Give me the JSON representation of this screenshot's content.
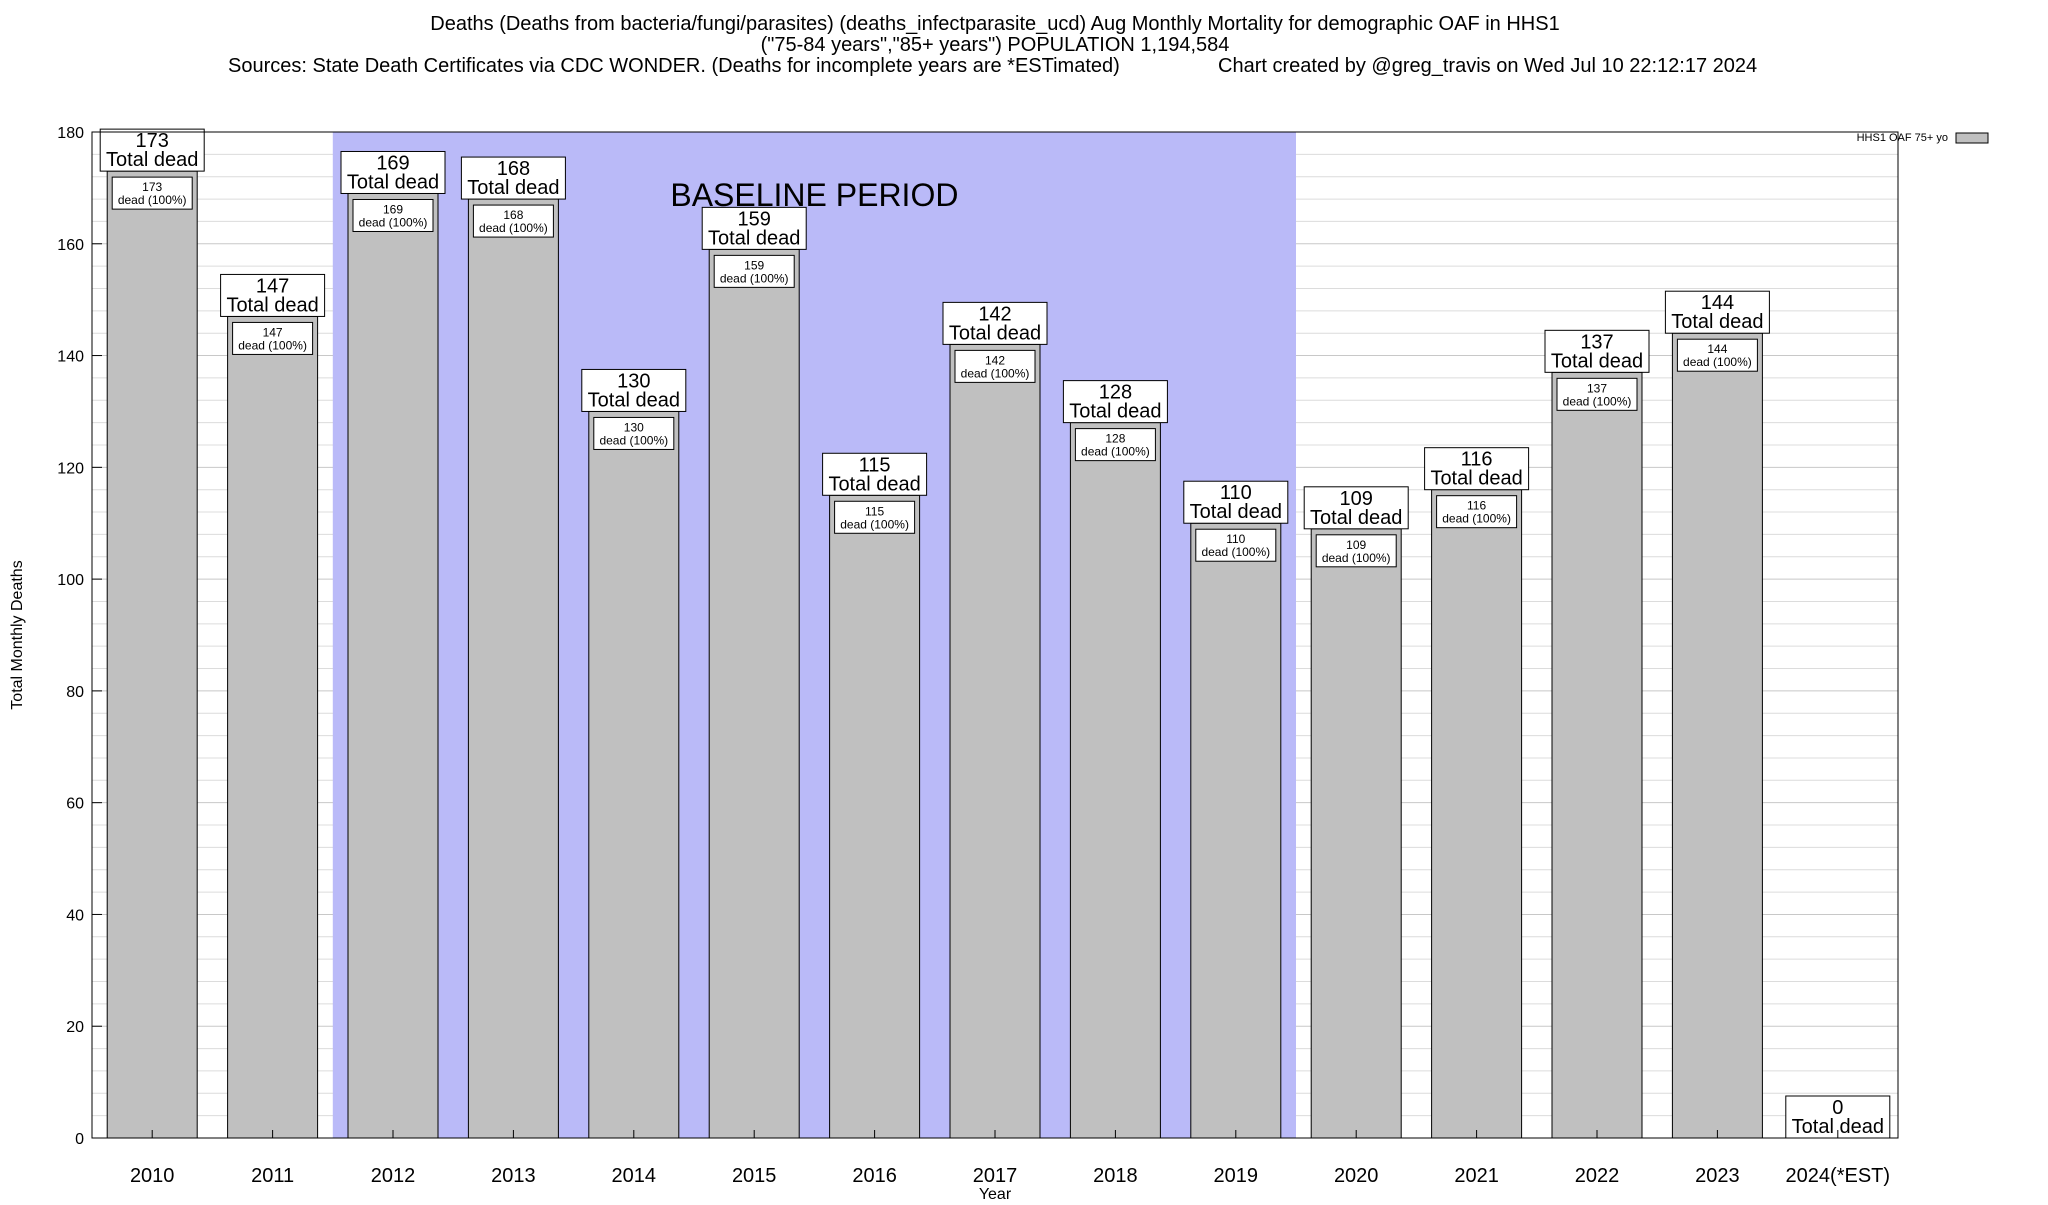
{
  "chart_data": {
    "type": "bar",
    "title_lines": [
      "Deaths (Deaths from bacteria/fungi/parasites) (deaths_infectparasite_ucd) Aug Monthly Mortality for demographic OAF in HHS1",
      "(\"75-84 years\",\"85+ years\") POPULATION 1,194,584",
      "Sources: State Death Certificates via CDC WONDER. (Deaths for incomplete years are *ESTimated)",
      "Chart created by @greg_travis on Wed Jul 10 22:12:17 2024"
    ],
    "xlabel": "Year",
    "ylabel": "Total Monthly Deaths",
    "ylim": [
      0,
      180
    ],
    "y_ticks": [
      0,
      20,
      40,
      60,
      80,
      100,
      120,
      140,
      160,
      180
    ],
    "grid": true,
    "legend": {
      "label": "HHS1 OAF 75+ yo",
      "position": "top-right",
      "color": "#c0c0c0"
    },
    "baseline": {
      "label": "BASELINE PERIOD",
      "from": "2012",
      "to": "2019",
      "color": "#babaf8"
    },
    "bar_color": "#c0c0c0",
    "total_label": "Total dead",
    "inner_label": "dead (100%)",
    "categories": [
      "2010",
      "2011",
      "2012",
      "2013",
      "2014",
      "2015",
      "2016",
      "2017",
      "2018",
      "2019",
      "2020",
      "2021",
      "2022",
      "2023",
      "2024(*EST)"
    ],
    "values": [
      173,
      147,
      169,
      168,
      130,
      159,
      115,
      142,
      128,
      110,
      109,
      116,
      137,
      144,
      0
    ]
  }
}
